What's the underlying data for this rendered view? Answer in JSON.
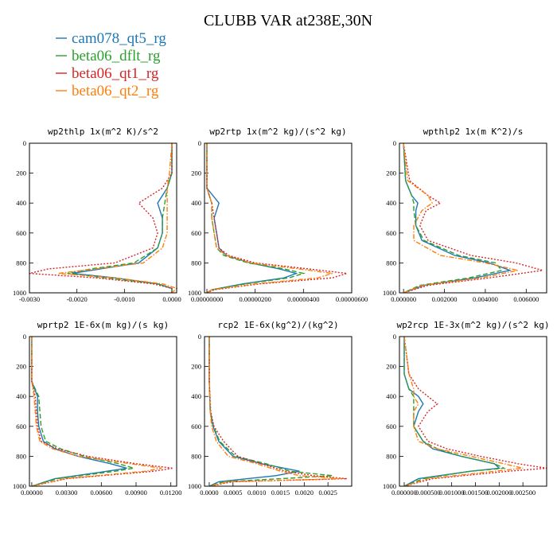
{
  "figure": {
    "title": "CLUBB VAR at238E,30N"
  },
  "legend": [
    {
      "name": "cam078_qt5_rg",
      "color": "#1f77b4",
      "dash": "solid"
    },
    {
      "name": "beta06_dflt_rg",
      "color": "#2ca02c",
      "dash": "dashed"
    },
    {
      "name": "beta06_qt1_rg",
      "color": "#d62728",
      "dash": "dotted"
    },
    {
      "name": "beta06_qt2_rg",
      "color": "#ff7f0e",
      "dash": "dashdot"
    }
  ],
  "chart_data": [
    {
      "type": "line",
      "title": "wp2thlp  1x(m^2 K)/s^2",
      "xlim": [
        -0.003,
        0.0001
      ],
      "ylim": [
        1000,
        0
      ],
      "xticks": [
        -0.003,
        -0.002,
        -0.001,
        0.0
      ],
      "xtick_labels": [
        "-0.0030",
        "-0.0020",
        "-0.0010",
        "0.0000"
      ],
      "yticks": [
        0,
        200,
        400,
        600,
        800,
        1000
      ],
      "y": [
        0,
        200,
        300,
        400,
        500,
        600,
        700,
        800,
        840,
        870,
        900,
        940,
        970,
        1000
      ],
      "series": [
        {
          "name": "cam078_qt5_rg",
          "x": [
            0,
            0,
            -0.0001,
            -0.0003,
            -0.0002,
            -0.0002,
            -0.0003,
            -0.0007,
            -0.0015,
            -0.0021,
            -0.0012,
            -0.0003,
            0.0,
            0.0
          ]
        },
        {
          "name": "beta06_dflt_rg",
          "x": [
            0,
            0,
            -0.0001,
            -0.00015,
            -0.0002,
            -0.0002,
            -0.0003,
            -0.0008,
            -0.0017,
            -0.0022,
            -0.0014,
            -0.0003,
            0.0,
            0.0
          ]
        },
        {
          "name": "beta06_qt1_rg",
          "x": [
            0,
            0,
            -0.0002,
            -0.0007,
            -0.0004,
            -0.0003,
            -0.0004,
            -0.0012,
            -0.0026,
            -0.003,
            -0.0016,
            -0.0004,
            0.0,
            0.0
          ]
        },
        {
          "name": "beta06_qt2_rg",
          "x": [
            0,
            -5e-05,
            -0.0001,
            -0.0001,
            -0.0001,
            -0.0001,
            -0.0002,
            -0.0006,
            -0.0016,
            -0.0024,
            -0.0012,
            -0.0002,
            0.0001,
            0.0
          ]
        }
      ]
    },
    {
      "type": "line",
      "title": "wp2rtp  1x(m^2 kg)/(s^2 kg)",
      "xlim": [
        -1e-07,
        6e-06
      ],
      "ylim": [
        1000,
        0
      ],
      "xticks": [
        0.0,
        2e-06,
        4e-06,
        6e-06
      ],
      "xtick_labels": [
        "0.00000000",
        "0.00000200",
        "0.00000400",
        "0.00000600"
      ],
      "yticks": [
        0,
        200,
        400,
        600,
        800,
        1000
      ],
      "y": [
        0,
        300,
        400,
        500,
        600,
        700,
        750,
        800,
        840,
        870,
        900,
        940,
        980,
        1000
      ],
      "series": [
        {
          "name": "cam078_qt5_rg",
          "x": [
            0,
            0,
            5e-07,
            3e-07,
            4e-07,
            5e-07,
            8e-07,
            1.8e-06,
            3e-06,
            3.7e-06,
            3.2e-06,
            1.5e-06,
            2e-07,
            0
          ]
        },
        {
          "name": "beta06_dflt_rg",
          "x": [
            0,
            0,
            2e-07,
            2e-07,
            3e-07,
            4e-07,
            7e-07,
            1.7e-06,
            3.2e-06,
            4e-06,
            3.4e-06,
            1.6e-06,
            2e-07,
            0
          ]
        },
        {
          "name": "beta06_qt1_rg",
          "x": [
            0,
            0,
            2e-07,
            3e-07,
            4e-07,
            5e-07,
            9e-07,
            2e-06,
            4.2e-06,
            5.8e-06,
            5.2e-06,
            2.2e-06,
            3e-07,
            0
          ]
        },
        {
          "name": "beta06_qt2_rg",
          "x": [
            0,
            0,
            2e-07,
            2e-07,
            3e-07,
            4e-07,
            8e-07,
            1.8e-06,
            3.8e-06,
            5.2e-06,
            4.6e-06,
            2e-06,
            2e-07,
            0
          ]
        }
      ]
    },
    {
      "type": "line",
      "title": "wpthlp2  1x(m K^2)/s",
      "xlim": [
        -0.0002,
        0.007
      ],
      "ylim": [
        1000,
        0
      ],
      "xticks": [
        0.0,
        0.002,
        0.004,
        0.006
      ],
      "xtick_labels": [
        "0.000000",
        "0.002000",
        "0.004000",
        "0.006000"
      ],
      "yticks": [
        0,
        200,
        400,
        600,
        800,
        1000
      ],
      "y": [
        0,
        250,
        350,
        400,
        450,
        550,
        650,
        750,
        800,
        850,
        900,
        950,
        1000
      ],
      "series": [
        {
          "name": "cam078_qt5_rg",
          "x": [
            0,
            0.0001,
            0.0004,
            0.0007,
            0.0006,
            0.0006,
            0.0009,
            0.0025,
            0.0042,
            0.0052,
            0.0035,
            0.001,
            0
          ]
        },
        {
          "name": "beta06_dflt_rg",
          "x": [
            0,
            0.0001,
            0.0004,
            0.0005,
            0.0005,
            0.0006,
            0.001,
            0.0027,
            0.0045,
            0.0048,
            0.0032,
            0.0008,
            0
          ]
        },
        {
          "name": "beta06_qt1_rg",
          "x": [
            0,
            0.0003,
            0.0012,
            0.0018,
            0.0011,
            0.0008,
            0.0012,
            0.0033,
            0.0055,
            0.0068,
            0.0042,
            0.0012,
            0
          ]
        },
        {
          "name": "beta06_qt2_rg",
          "x": [
            0,
            0.0002,
            0.0012,
            0.0014,
            0.0009,
            0.0005,
            0.0005,
            0.0018,
            0.004,
            0.0056,
            0.0038,
            0.0009,
            0
          ]
        }
      ]
    },
    {
      "type": "line",
      "title": "wprtp2  1E-6x(m kg)/(s kg)",
      "xlim": [
        -0.0002,
        0.0125
      ],
      "ylim": [
        1000,
        0
      ],
      "xticks": [
        0.0,
        0.003,
        0.006,
        0.009,
        0.012
      ],
      "xtick_labels": [
        "0.00000",
        "0.00300",
        "0.00600",
        "0.00900",
        "0.01200"
      ],
      "yticks": [
        0,
        200,
        400,
        600,
        800,
        1000
      ],
      "y": [
        0,
        300,
        400,
        500,
        600,
        700,
        750,
        800,
        850,
        880,
        900,
        950,
        1000
      ],
      "series": [
        {
          "name": "cam078_qt5_rg",
          "x": [
            0,
            0,
            0.0005,
            0.0005,
            0.0006,
            0.001,
            0.002,
            0.004,
            0.0068,
            0.0082,
            0.0065,
            0.002,
            0
          ]
        },
        {
          "name": "beta06_dflt_rg",
          "x": [
            0,
            0,
            0.0006,
            0.0007,
            0.0008,
            0.0012,
            0.0025,
            0.0045,
            0.0075,
            0.0088,
            0.0072,
            0.0022,
            0
          ]
        },
        {
          "name": "beta06_qt1_rg",
          "x": [
            0,
            0,
            0.0003,
            0.0004,
            0.0005,
            0.0008,
            0.0022,
            0.0048,
            0.009,
            0.0122,
            0.0105,
            0.003,
            0
          ]
        },
        {
          "name": "beta06_qt2_rg",
          "x": [
            0,
            0,
            0.0002,
            0.0003,
            0.0004,
            0.0007,
            0.0018,
            0.004,
            0.0085,
            0.0112,
            0.0098,
            0.0028,
            0
          ]
        }
      ]
    },
    {
      "type": "line",
      "title": "rcp2  1E-6x(kg^2)/(kg^2)",
      "xlim": [
        -0.0001,
        0.003
      ],
      "ylim": [
        1000,
        0
      ],
      "xticks": [
        0.0,
        0.0005,
        0.001,
        0.0015,
        0.002,
        0.0025
      ],
      "xtick_labels": [
        "0.0000",
        "0.0005",
        "0.0010",
        "0.0015",
        "0.0020",
        "0.0025"
      ],
      "yticks": [
        0,
        200,
        400,
        600,
        800,
        1000
      ],
      "y": [
        0,
        300,
        500,
        600,
        700,
        800,
        850,
        900,
        930,
        950,
        970,
        1000
      ],
      "series": [
        {
          "name": "cam078_qt5_rg",
          "x": [
            0,
            0,
            2e-05,
            8e-05,
            0.0002,
            0.0005,
            0.0011,
            0.0019,
            0.0014,
            0.0008,
            0.0002,
            0
          ]
        },
        {
          "name": "beta06_dflt_rg",
          "x": [
            0,
            0,
            2e-05,
            9e-05,
            0.00022,
            0.00055,
            0.0012,
            0.0017,
            0.0026,
            0.0015,
            0.0003,
            0
          ]
        },
        {
          "name": "beta06_qt1_rg",
          "x": [
            0,
            0,
            3e-05,
            0.0001,
            0.0003,
            0.0006,
            0.0011,
            0.0016,
            0.0022,
            0.0029,
            0.0005,
            0
          ]
        },
        {
          "name": "beta06_qt2_rg",
          "x": [
            0,
            0,
            2e-05,
            5e-05,
            0.00015,
            0.0004,
            0.001,
            0.0015,
            0.0019,
            0.0028,
            0.0004,
            0
          ]
        }
      ]
    },
    {
      "type": "line",
      "title": "wp2rcp  1E-3x(m^2 kg)/(s^2 kg)",
      "xlim": [
        -0.0001,
        0.003
      ],
      "ylim": [
        1000,
        0
      ],
      "xticks": [
        0.0,
        0.0005,
        0.001,
        0.0015,
        0.002,
        0.0025
      ],
      "xtick_labels": [
        "0.000000",
        "0.000500",
        "0.001000",
        "0.001500",
        "0.002000",
        "0.002500"
      ],
      "yticks": [
        0,
        200,
        400,
        600,
        800,
        1000
      ],
      "y": [
        0,
        250,
        350,
        400,
        450,
        500,
        600,
        700,
        750,
        800,
        850,
        880,
        900,
        950,
        1000
      ],
      "series": [
        {
          "name": "cam078_qt5_rg",
          "x": [
            0,
            0,
            0.0001,
            0.0003,
            0.0004,
            0.0003,
            0.0002,
            0.0004,
            0.0006,
            0.0012,
            0.0019,
            0.002,
            0.0014,
            0.0003,
            0
          ]
        },
        {
          "name": "beta06_dflt_rg",
          "x": [
            0,
            0,
            0.0001,
            0.0002,
            0.0002,
            0.0002,
            0.0002,
            0.0004,
            0.0007,
            0.0012,
            0.0019,
            0.0021,
            0.0014,
            0.0004,
            0
          ]
        },
        {
          "name": "beta06_qt1_rg",
          "x": [
            0,
            0.0001,
            0.0003,
            0.0005,
            0.0007,
            0.0005,
            0.0003,
            0.0005,
            0.0009,
            0.0016,
            0.0024,
            0.003,
            0.0022,
            0.0006,
            0
          ]
        },
        {
          "name": "beta06_qt2_rg",
          "x": [
            0,
            0.0001,
            0.0002,
            0.0002,
            0.0003,
            0.0002,
            0.0002,
            0.0003,
            0.0007,
            0.0014,
            0.0021,
            0.0025,
            0.0019,
            0.0005,
            0
          ]
        }
      ]
    }
  ]
}
